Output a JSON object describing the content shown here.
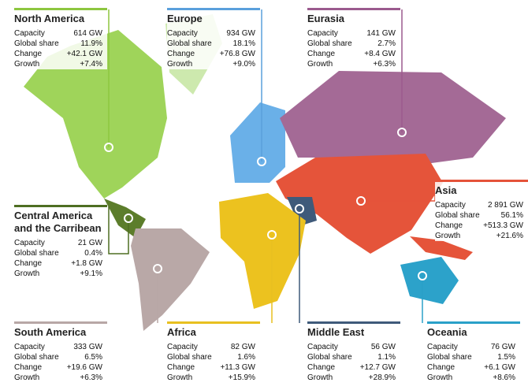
{
  "regions": [
    {
      "name": "North America",
      "rows": [
        [
          "Capacity",
          "614 GW"
        ],
        [
          "Global share",
          "11.9%"
        ],
        [
          "Change",
          "+42.1 GW"
        ],
        [
          "Growth",
          "+7.4%"
        ]
      ]
    },
    {
      "name": "Europe",
      "rows": [
        [
          "Capacity",
          "934 GW"
        ],
        [
          "Global share",
          "18.1%"
        ],
        [
          "Change",
          "+76.8 GW"
        ],
        [
          "Growth",
          "+9.0%"
        ]
      ]
    },
    {
      "name": "Eurasia",
      "rows": [
        [
          "Capacity",
          "141 GW"
        ],
        [
          "Global share",
          "2.7%"
        ],
        [
          "Change",
          "+8.4 GW"
        ],
        [
          "Growth",
          "+6.3%"
        ]
      ]
    },
    {
      "name": "Asia",
      "rows": [
        [
          "Capacity",
          "2 891 GW"
        ],
        [
          "Global share",
          "56.1%"
        ],
        [
          "Change",
          "+513.3 GW"
        ],
        [
          "Growth",
          "+21.6%"
        ]
      ]
    },
    {
      "name": "Central America and the Carribean",
      "rows": [
        [
          "Capacity",
          "21 GW"
        ],
        [
          "Global share",
          "0.4%"
        ],
        [
          "Change",
          "+1.8 GW"
        ],
        [
          "Growth",
          "+9.1%"
        ]
      ]
    },
    {
      "name": "South America",
      "rows": [
        [
          "Capacity",
          "333 GW"
        ],
        [
          "Global share",
          "6.5%"
        ],
        [
          "Change",
          "+19.6 GW"
        ],
        [
          "Growth",
          "+6.3%"
        ]
      ]
    },
    {
      "name": "Africa",
      "rows": [
        [
          "Capacity",
          "82 GW"
        ],
        [
          "Global share",
          "1.6%"
        ],
        [
          "Change",
          "+11.3 GW"
        ],
        [
          "Growth",
          "+15.9%"
        ]
      ]
    },
    {
      "name": "Middle East",
      "rows": [
        [
          "Capacity",
          "56 GW"
        ],
        [
          "Global share",
          "1.1%"
        ],
        [
          "Change",
          "+12.7 GW"
        ],
        [
          "Growth",
          "+28.9%"
        ]
      ]
    },
    {
      "name": "Oceania",
      "rows": [
        [
          "Capacity",
          "76 GW"
        ],
        [
          "Global share",
          "1.5%"
        ],
        [
          "Change",
          "+6.1 GW"
        ],
        [
          "Growth",
          "+8.6%"
        ]
      ]
    }
  ]
}
